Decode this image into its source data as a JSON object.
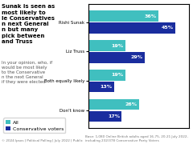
{
  "chart_data": {
    "type": "bar",
    "orientation": "horizontal",
    "title": "Sunak is seen as\nmost likely to\nle Conservatives\nn next General\nn but many\npick between\nand Truss",
    "subtitle": "In your opinion, who, if\nwould be most likely\nto the Conservative\nn the next General\nif they were elected",
    "categories": [
      "Rishi Sunak",
      "Liz Truss",
      "Both equally likely",
      "Don't know"
    ],
    "series": [
      {
        "name": "All",
        "color": "#40bfbf",
        "values": [
          36,
          19,
          19,
          26
        ],
        "value_labels": [
          "36%",
          "19%",
          "19%",
          "26%"
        ]
      },
      {
        "name": "Conservative voters",
        "color": "#1a2d9e",
        "values": [
          45,
          29,
          13,
          17
        ],
        "value_labels": [
          "45%",
          "29%",
          "13%",
          "17%"
        ]
      }
    ],
    "xlim": [
      0,
      52
    ],
    "tick_labels": "y",
    "data_labels": true,
    "grid": false,
    "legend": "lower left",
    "annotations": [
      "Base: 1,080 Online British adults aged 16-75, 20-21 July 2022, including 232/378 Conservative Party Voters",
      "© 2024 Ipsos | Political Polling | July 2022 | Public"
    ]
  }
}
